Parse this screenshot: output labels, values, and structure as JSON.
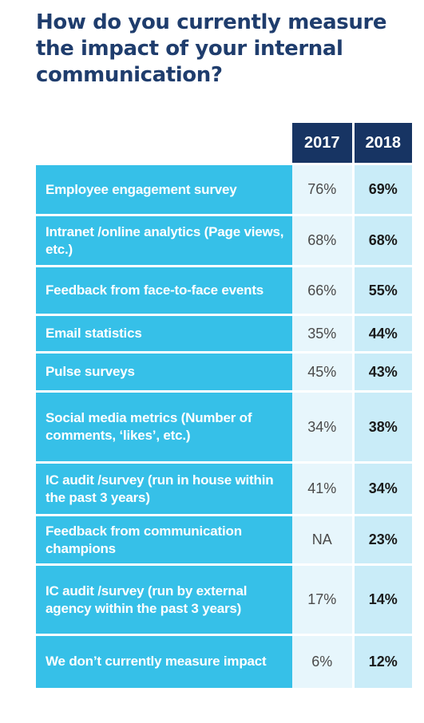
{
  "title_lines": [
    "How do you currently measure",
    "the impact of your internal",
    "communication?"
  ],
  "chart_data": {
    "type": "table",
    "title": "How do you currently measure the impact of your internal communication?",
    "columns": [
      "2017",
      "2018"
    ],
    "rows": [
      {
        "label": "Employee engagement survey",
        "v2017": "76%",
        "v2018": "69%",
        "height": 64
      },
      {
        "label": "Intranet /online analytics (Page views, etc.)",
        "v2017": "68%",
        "v2018": "68%",
        "height": 64
      },
      {
        "label": "Feedback from face-to-face events",
        "v2017": "66%",
        "v2018": "55%",
        "height": 61
      },
      {
        "label": "Email statistics",
        "v2017": "35%",
        "v2018": "44%",
        "height": 47
      },
      {
        "label": "Pulse surveys",
        "v2017": "45%",
        "v2018": "43%",
        "height": 49
      },
      {
        "label": "Social media metrics (Number of comments, ‘likes’, etc.)",
        "v2017": "34%",
        "v2018": "38%",
        "height": 89
      },
      {
        "label": "IC audit /survey (run in house within the past 3 years)",
        "v2017": "41%",
        "v2018": "34%",
        "height": 66
      },
      {
        "label": "Feedback from communication champions",
        "v2017": "NA",
        "v2018": "23%",
        "height": 62
      },
      {
        "label": "IC audit /survey (run by external agency within the past 3 years)",
        "v2017": "17%",
        "v2018": "14%",
        "height": 88
      },
      {
        "label": "We don’t currently measure impact",
        "v2017": "6%",
        "v2018": "12%",
        "height": 66
      }
    ]
  },
  "colors": {
    "title": "#1f3d6d",
    "header_bg": "#173463",
    "label_bg": "#36c0e8",
    "cell_2017_bg": "#e7f6fc",
    "cell_2018_bg": "#c9ecf8"
  }
}
